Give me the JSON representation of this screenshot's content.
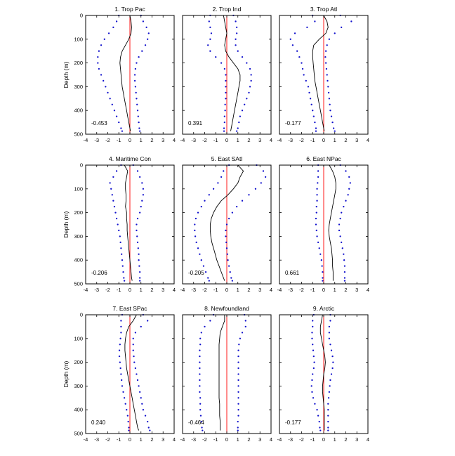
{
  "chart_data": {
    "type": "line",
    "layout": "3x3 panels",
    "xlim": [
      -4,
      4
    ],
    "xticks": [
      -4,
      -3,
      -2,
      -1,
      0,
      1,
      2,
      3,
      4
    ],
    "ylim": [
      0,
      500
    ],
    "yticks": [
      0,
      100,
      200,
      300,
      400,
      500
    ],
    "y_inverted": true,
    "ylabel": "Depth (m)",
    "grid": false,
    "colors": {
      "mean": "#000000",
      "spread": "#1010cc",
      "zero_line": "#ff0000"
    },
    "depths": [
      0,
      25,
      50,
      75,
      100,
      125,
      150,
      175,
      200,
      225,
      250,
      275,
      300,
      325,
      350,
      375,
      400,
      425,
      450,
      475,
      487
    ],
    "panels": [
      {
        "title": "1. Trop Pac",
        "corr": "-0.453",
        "mean": [
          0,
          0.1,
          0.15,
          0.1,
          -0.1,
          -0.4,
          -0.7,
          -0.85,
          -0.9,
          -0.85,
          -0.8,
          -0.75,
          -0.7,
          -0.6,
          -0.5,
          -0.4,
          -0.3,
          -0.2,
          -0.1,
          0,
          0.05
        ],
        "left": [
          -1,
          -1.2,
          -1.5,
          -1.9,
          -2.3,
          -2.6,
          -2.8,
          -2.9,
          -2.9,
          -2.8,
          -2.6,
          -2.4,
          -2.2,
          -2.0,
          -1.8,
          -1.6,
          -1.4,
          -1.2,
          -1.0,
          -0.8,
          -0.7
        ],
        "right": [
          1,
          1.2,
          1.5,
          1.7,
          1.6,
          1.4,
          1.1,
          0.8,
          0.6,
          0.5,
          0.45,
          0.45,
          0.5,
          0.55,
          0.6,
          0.65,
          0.7,
          0.75,
          0.8,
          0.85,
          0.9
        ]
      },
      {
        "title": "2. Trop Ind",
        "corr": "0.391",
        "mean": [
          -0.3,
          -0.2,
          -0.1,
          0,
          -0.1,
          -0.2,
          -0.1,
          0.2,
          0.6,
          1.0,
          1.2,
          1.2,
          1.1,
          1.0,
          0.9,
          0.8,
          0.7,
          0.6,
          0.5,
          0.4,
          0.35
        ],
        "left": [
          -1.5,
          -1.6,
          -1.5,
          -1.4,
          -1.5,
          -1.7,
          -1.5,
          -1.0,
          -0.5,
          -0.2,
          -0.1,
          -0.1,
          -0.1,
          -0.1,
          -0.1,
          -0.15,
          -0.15,
          -0.2,
          -0.2,
          -0.25,
          -0.25
        ],
        "right": [
          0.6,
          0.8,
          0.9,
          0.9,
          0.8,
          0.8,
          1.0,
          1.4,
          1.8,
          2.1,
          2.2,
          2.2,
          2.1,
          2.0,
          1.8,
          1.6,
          1.4,
          1.2,
          1.1,
          1.0,
          0.9
        ]
      },
      {
        "title": "3. Trop Atl",
        "corr": "-0.177",
        "mean": [
          0,
          0.3,
          0.4,
          0.2,
          -0.4,
          -0.9,
          -1.0,
          -1.0,
          -0.95,
          -0.9,
          -0.85,
          -0.8,
          -0.7,
          -0.6,
          -0.5,
          -0.4,
          -0.3,
          -0.2,
          -0.1,
          0,
          0.05
        ],
        "left": [
          -1,
          -0.8,
          -1.5,
          -2.6,
          -3.0,
          -2.8,
          -2.4,
          -2.2,
          -2.0,
          -1.9,
          -1.8,
          -1.6,
          -1.4,
          -1.3,
          -1.2,
          -1.1,
          -1.0,
          -0.9,
          -0.8,
          -0.7,
          -0.7
        ],
        "right": [
          1.5,
          2.5,
          1.6,
          1.0,
          0.5,
          0.3,
          0.2,
          0.15,
          0.2,
          0.25,
          0.3,
          0.35,
          0.4,
          0.45,
          0.5,
          0.55,
          0.6,
          0.7,
          0.8,
          0.9,
          1.0
        ]
      },
      {
        "title": "4. Maritime Con",
        "corr": "-0.206",
        "mean": [
          -0.5,
          -0.2,
          -0.3,
          -0.4,
          -0.4,
          -0.35,
          -0.35,
          -0.4,
          -0.3,
          -0.3,
          -0.25,
          -0.25,
          -0.2,
          -0.15,
          -0.1,
          -0.05,
          0,
          0.05,
          0.1,
          0.15,
          0.2
        ],
        "left": [
          -0.8,
          -1.2,
          -1.5,
          -1.8,
          -1.7,
          -1.6,
          -1.5,
          -1.4,
          -1.3,
          -1.2,
          -1.1,
          -1.0,
          -0.9,
          -0.85,
          -0.8,
          -0.75,
          -0.7,
          -0.65,
          -0.6,
          -0.55,
          -0.5
        ],
        "right": [
          0.3,
          0.7,
          0.9,
          1.1,
          1.2,
          1.2,
          1.1,
          1.0,
          0.9,
          0.7,
          0.6,
          0.6,
          0.65,
          0.7,
          0.75,
          0.8,
          0.8,
          0.85,
          0.9,
          0.9,
          0.9
        ]
      },
      {
        "title": "5. East SAtl",
        "corr": "-0.205",
        "mean": [
          1.0,
          1.5,
          1.2,
          1.0,
          0.6,
          0.1,
          -0.5,
          -0.9,
          -1.2,
          -1.4,
          -1.5,
          -1.5,
          -1.45,
          -1.35,
          -1.2,
          -1.05,
          -0.9,
          -0.7,
          -0.5,
          -0.3,
          -0.2
        ],
        "left": [
          0.2,
          -0.3,
          -0.5,
          -0.8,
          -1.2,
          -1.6,
          -2.0,
          -2.3,
          -2.6,
          -2.8,
          -2.9,
          -2.9,
          -2.85,
          -2.75,
          -2.6,
          -2.45,
          -2.3,
          -2.1,
          -1.9,
          -1.7,
          -1.6
        ],
        "right": [
          2.7,
          3.3,
          3.5,
          3.1,
          2.6,
          2.0,
          1.4,
          0.9,
          0.5,
          0.2,
          0,
          -0.1,
          -0.1,
          -0.05,
          0,
          0.05,
          0.1,
          0.2,
          0.3,
          0.4,
          0.5
        ]
      },
      {
        "title": "6. East NPac",
        "corr": "0.661",
        "mean": [
          0.5,
          0.8,
          1.0,
          1.1,
          1.1,
          1.0,
          0.9,
          0.8,
          0.7,
          0.6,
          0.5,
          0.45,
          0.5,
          0.6,
          0.7,
          0.75,
          0.8,
          0.8,
          0.85,
          0.85,
          0.85
        ],
        "left": [
          -0.5,
          -0.5,
          -0.5,
          -0.55,
          -0.6,
          -0.6,
          -0.6,
          -0.65,
          -0.65,
          -0.7,
          -0.7,
          -0.65,
          -0.6,
          -0.5,
          -0.4,
          -0.3,
          -0.2,
          -0.15,
          -0.1,
          -0.1,
          -0.1
        ],
        "right": [
          1.5,
          2.0,
          2.3,
          2.4,
          2.3,
          2.2,
          2.0,
          1.8,
          1.6,
          1.5,
          1.4,
          1.4,
          1.5,
          1.6,
          1.7,
          1.8,
          1.85,
          1.9,
          1.9,
          1.9,
          1.9
        ]
      },
      {
        "title": "7. East SPac",
        "corr": "0.240",
        "mean": [
          0.6,
          0.3,
          -0.1,
          -0.3,
          -0.4,
          -0.45,
          -0.45,
          -0.4,
          -0.35,
          -0.3,
          -0.2,
          -0.1,
          0,
          0.1,
          0.2,
          0.3,
          0.4,
          0.5,
          0.6,
          0.7,
          0.8
        ],
        "left": [
          -0.7,
          -0.8,
          -0.8,
          -0.8,
          -0.85,
          -0.9,
          -0.95,
          -0.95,
          -0.9,
          -0.85,
          -0.8,
          -0.75,
          -0.7,
          -0.6,
          -0.5,
          -0.4,
          -0.3,
          -0.2,
          -0.15,
          -0.1,
          -0.1
        ],
        "right": [
          1.2,
          1.6,
          1.0,
          0.5,
          0.3,
          0.3,
          0.3,
          0.35,
          0.4,
          0.5,
          0.6,
          0.7,
          0.8,
          0.9,
          1.0,
          1.1,
          1.2,
          1.4,
          1.6,
          1.7,
          1.8
        ]
      },
      {
        "title": "8. Newfoundland",
        "corr": "-0.464",
        "mean": [
          -0.2,
          -0.2,
          -0.4,
          -0.6,
          -0.65,
          -0.7,
          -0.7,
          -0.7,
          -0.7,
          -0.7,
          -0.7,
          -0.7,
          -0.7,
          -0.7,
          -0.7,
          -0.65,
          -0.65,
          -0.65,
          -0.6,
          -0.6,
          -0.6
        ],
        "left": [
          -1.2,
          -1.5,
          -2.0,
          -2.3,
          -2.4,
          -2.4,
          -2.45,
          -2.45,
          -2.45,
          -2.45,
          -2.45,
          -2.45,
          -2.45,
          -2.45,
          -2.4,
          -2.4,
          -2.4,
          -2.35,
          -2.3,
          -2.25,
          -2.2
        ],
        "right": [
          1.6,
          1.7,
          1.7,
          1.4,
          1.2,
          1.1,
          1.05,
          1.05,
          1.05,
          1.05,
          1.05,
          1.05,
          1.05,
          1.05,
          1.05,
          1.05,
          1.05,
          1.05,
          1.0,
          1.0,
          1.0
        ]
      },
      {
        "title": "9. Arctic",
        "corr": "-0.177",
        "mean": [
          -0.1,
          -0.2,
          -0.3,
          -0.3,
          -0.2,
          -0.1,
          0,
          0.1,
          0.15,
          0.1,
          0,
          -0.05,
          -0.1,
          -0.1,
          -0.05,
          0,
          0.05,
          0.05,
          0.05,
          0.05,
          0.05
        ],
        "left": [
          -0.9,
          -1.0,
          -1.0,
          -1.05,
          -1.05,
          -1.0,
          -0.95,
          -0.9,
          -0.85,
          -0.9,
          -1.0,
          -1.05,
          -1.1,
          -1.05,
          -0.95,
          -0.8,
          -0.6,
          -0.5,
          -0.4,
          -0.35,
          -0.3
        ],
        "right": [
          0.6,
          0.6,
          0.5,
          0.5,
          0.5,
          0.6,
          0.7,
          0.8,
          0.85,
          0.8,
          0.7,
          0.6,
          0.55,
          0.5,
          0.45,
          0.4,
          0.4,
          0.4,
          0.4,
          0.4,
          0.4
        ]
      }
    ]
  }
}
